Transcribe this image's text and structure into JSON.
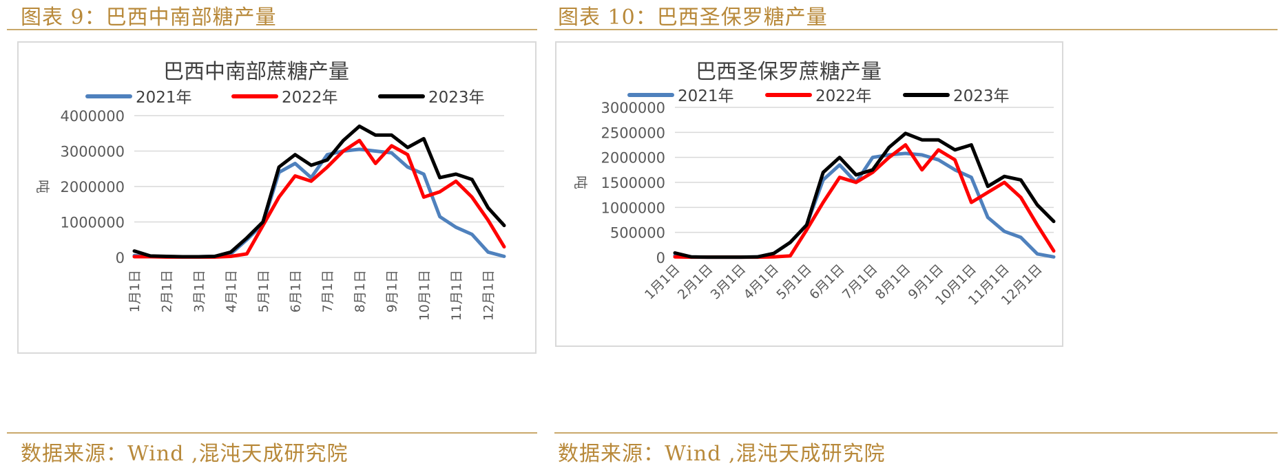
{
  "figures": [
    {
      "label": "图表 9：巴西中南部糖产量",
      "source": "数据来源：Wind ,混沌天成研究院"
    },
    {
      "label": "图表 10：巴西圣保罗糖产量",
      "source": "数据来源：Wind ,混沌天成研究院"
    }
  ],
  "chart_data": [
    {
      "type": "line",
      "title": "巴西中南部蔗糖产量",
      "xlabel": "",
      "ylabel": "吨",
      "ylim": [
        0,
        4000000
      ],
      "yticks": [
        "0",
        "1000000",
        "2000000",
        "3000000",
        "4000000"
      ],
      "xtick_labels": [
        "1月1日",
        "2月1日",
        "3月1日",
        "4月1日",
        "5月1日",
        "6月1日",
        "7月1日",
        "8月1日",
        "9月1日",
        "10月1日",
        "11月1日",
        "12月1日"
      ],
      "grid": true,
      "legend_position": "top",
      "series": [
        {
          "name": "2021年",
          "color": "#4f81bd",
          "values": [
            50000,
            30000,
            20000,
            10000,
            20000,
            30000,
            100000,
            500000,
            950000,
            2400000,
            2650000,
            2250000,
            2900000,
            3000000,
            3050000,
            3000000,
            2950000,
            2550000,
            2350000,
            1150000,
            850000,
            650000,
            150000,
            30000
          ]
        },
        {
          "name": "2022年",
          "color": "#ff0000",
          "values": [
            20000,
            20000,
            10000,
            10000,
            10000,
            10000,
            30000,
            100000,
            900000,
            1700000,
            2300000,
            2150000,
            2550000,
            3000000,
            3300000,
            2650000,
            3150000,
            2900000,
            1700000,
            1850000,
            2150000,
            1700000,
            1050000,
            300000
          ]
        },
        {
          "name": "2023年",
          "color": "#000000",
          "values": [
            180000,
            40000,
            30000,
            20000,
            20000,
            30000,
            150000,
            550000,
            1000000,
            2550000,
            2900000,
            2600000,
            2750000,
            3300000,
            3700000,
            3450000,
            3450000,
            3100000,
            3350000,
            2250000,
            2350000,
            2200000,
            1400000,
            900000
          ]
        }
      ]
    },
    {
      "type": "line",
      "title": "巴西圣保罗蔗糖产量",
      "xlabel": "",
      "ylabel": "吨",
      "ylim": [
        0,
        3000000
      ],
      "yticks": [
        "0",
        "500000",
        "1000000",
        "1500000",
        "2000000",
        "2500000",
        "3000000"
      ],
      "xtick_labels": [
        "1月1日",
        "2月1日",
        "3月1日",
        "4月1日",
        "5月1日",
        "6月1日",
        "7月1日",
        "8月1日",
        "9月1日",
        "10月1日",
        "11月1日",
        "12月1日"
      ],
      "grid": true,
      "legend_position": "top",
      "series": [
        {
          "name": "2021年",
          "color": "#4f81bd",
          "values": [
            40000,
            10000,
            5000,
            5000,
            5000,
            10000,
            80000,
            300000,
            650000,
            1550000,
            1850000,
            1500000,
            2000000,
            2050000,
            2080000,
            2050000,
            1950000,
            1750000,
            1600000,
            800000,
            520000,
            400000,
            70000,
            10000
          ]
        },
        {
          "name": "2022年",
          "color": "#ff0000",
          "values": [
            10000,
            5000,
            5000,
            5000,
            5000,
            5000,
            10000,
            30000,
            550000,
            1100000,
            1600000,
            1500000,
            1700000,
            2000000,
            2250000,
            1750000,
            2150000,
            1950000,
            1100000,
            1300000,
            1500000,
            1200000,
            650000,
            130000
          ]
        },
        {
          "name": "2023年",
          "color": "#000000",
          "values": [
            90000,
            10000,
            5000,
            5000,
            5000,
            10000,
            80000,
            300000,
            650000,
            1700000,
            2000000,
            1650000,
            1750000,
            2200000,
            2480000,
            2350000,
            2350000,
            2150000,
            2250000,
            1420000,
            1620000,
            1550000,
            1050000,
            720000
          ]
        }
      ]
    }
  ]
}
